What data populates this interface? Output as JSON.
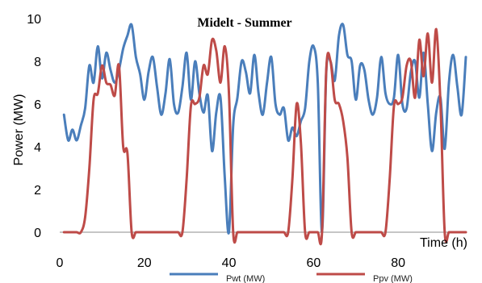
{
  "chart_data": {
    "type": "line",
    "title": "Midelt - Summer",
    "xlabel": "Time (h)",
    "ylabel": "Power (MW)",
    "xlim": [
      0,
      96
    ],
    "ylim": [
      0,
      10
    ],
    "xticks": [
      0,
      20,
      40,
      60,
      80
    ],
    "yticks": [
      0,
      2,
      4,
      6,
      8,
      10
    ],
    "grid": false,
    "legend_position": "bottom",
    "x": [
      1,
      2,
      3,
      4,
      5,
      6,
      7,
      8,
      9,
      10,
      11,
      12,
      13,
      14,
      15,
      16,
      17,
      18,
      19,
      20,
      21,
      22,
      23,
      24,
      25,
      26,
      27,
      28,
      29,
      30,
      31,
      32,
      33,
      34,
      35,
      36,
      37,
      38,
      39,
      40,
      41,
      42,
      43,
      44,
      45,
      46,
      47,
      48,
      49,
      50,
      51,
      52,
      53,
      54,
      55,
      56,
      57,
      58,
      59,
      60,
      61,
      62,
      63,
      64,
      65,
      66,
      67,
      68,
      69,
      70,
      71,
      72,
      73,
      74,
      75,
      76,
      77,
      78,
      79,
      80,
      81,
      82,
      83,
      84,
      85,
      86,
      87,
      88,
      89,
      90,
      91,
      92,
      93,
      94,
      95,
      96
    ],
    "series": [
      {
        "name": "Pwt (MW)",
        "color": "#4a7ebb",
        "values": [
          5.5,
          4.3,
          4.8,
          4.3,
          5.0,
          5.8,
          7.8,
          7.0,
          8.7,
          7.2,
          8.4,
          7.6,
          7.0,
          7.6,
          8.6,
          9.2,
          9.7,
          8.2,
          7.4,
          6.2,
          7.5,
          8.2,
          6.8,
          5.5,
          6.5,
          8.1,
          6.0,
          5.6,
          6.8,
          8.4,
          6.2,
          8.0,
          6.5,
          5.6,
          6.4,
          3.8,
          5.6,
          6.3,
          2.6,
          0.0,
          5.0,
          6.3,
          8.0,
          7.5,
          6.5,
          8.3,
          6.5,
          5.5,
          7.0,
          8.2,
          6.0,
          5.5,
          5.8,
          4.3,
          4.9,
          4.5,
          5.2,
          5.8,
          8.0,
          8.7,
          7.0,
          0.0,
          7.5,
          8.0,
          7.1,
          9.2,
          9.7,
          8.3,
          8.0,
          6.2,
          7.8,
          7.6,
          6.2,
          5.5,
          6.3,
          8.2,
          6.5,
          6.0,
          6.3,
          8.3,
          6.0,
          5.8,
          7.5,
          8.0,
          6.3,
          8.4,
          6.0,
          3.8,
          5.6,
          6.3,
          3.9,
          7.0,
          8.3,
          6.8,
          5.5,
          8.2
        ]
      },
      {
        "name": "Ppv (MW)",
        "color": "#be4b48",
        "values": [
          0,
          0,
          0,
          0,
          0,
          0.7,
          3.0,
          6.2,
          6.5,
          7.8,
          7.0,
          6.9,
          6.4,
          7.8,
          4.0,
          3.7,
          0.0,
          0,
          0,
          0,
          0,
          0,
          0,
          0,
          0,
          0,
          0,
          0,
          0,
          2.5,
          5.9,
          6.0,
          6.3,
          7.8,
          7.4,
          9.0,
          8.5,
          7.0,
          8.7,
          6.5,
          0.0,
          0,
          0,
          0,
          0,
          0,
          0,
          0,
          0,
          0,
          0,
          0,
          0,
          0,
          2.5,
          6.0,
          4.2,
          0.0,
          0,
          0,
          0,
          0,
          7.6,
          8.0,
          6.2,
          6.0,
          5.2,
          3.5,
          0.0,
          0,
          0,
          0,
          0,
          0,
          0,
          0,
          0,
          2.5,
          5.9,
          6.0,
          6.3,
          7.8,
          8.0,
          6.3,
          9.0,
          7.3,
          9.3,
          7.0,
          9.5,
          6.0,
          0.0,
          0,
          0,
          0,
          0,
          0
        ]
      }
    ]
  }
}
